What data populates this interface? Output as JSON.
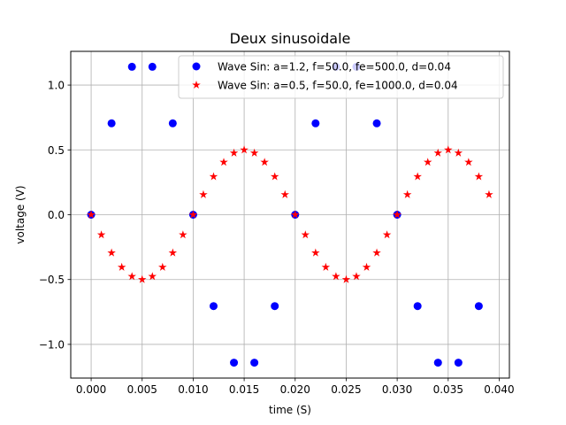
{
  "chart_data": {
    "type": "scatter",
    "title": "Deux sinusoidale",
    "xlabel": "time (S)",
    "ylabel": "voltage (V)",
    "xlim": [
      -0.002,
      0.041
    ],
    "ylim": [
      -1.26,
      1.26
    ],
    "xticks": [
      0.0,
      0.005,
      0.01,
      0.015,
      0.02,
      0.025,
      0.03,
      0.035,
      0.04
    ],
    "xtick_labels": [
      "0.000",
      "0.005",
      "0.010",
      "0.015",
      "0.020",
      "0.025",
      "0.030",
      "0.035",
      "0.040"
    ],
    "yticks": [
      -1.0,
      -0.5,
      0.0,
      0.5,
      1.0
    ],
    "ytick_labels": [
      "−1.0",
      "−0.5",
      "0.0",
      "0.5",
      "1.0"
    ],
    "grid": true,
    "legend_position": "upper-right",
    "series": [
      {
        "name": "Wave Sin: a=1.2, f=50.0, fe=500.0,  d=0.04",
        "marker": "circle",
        "color": "#0000ff",
        "x": [
          0.0,
          0.002,
          0.004,
          0.006,
          0.008,
          0.01,
          0.012,
          0.014,
          0.016,
          0.018,
          0.02,
          0.022,
          0.024,
          0.026,
          0.028,
          0.03,
          0.032,
          0.034,
          0.036,
          0.038
        ],
        "y": [
          0.0,
          0.705,
          1.141,
          1.141,
          0.705,
          0.0,
          -0.705,
          -1.141,
          -1.141,
          -0.705,
          0.0,
          0.705,
          1.141,
          1.141,
          0.705,
          0.0,
          -0.705,
          -1.141,
          -1.141,
          -0.705
        ]
      },
      {
        "name": "Wave Sin: a=0.5, f=50.0, fe=1000.0,  d=0.04",
        "marker": "star",
        "color": "#ff0000",
        "x": [
          0.0,
          0.001,
          0.002,
          0.003,
          0.004,
          0.005,
          0.006,
          0.007,
          0.008,
          0.009,
          0.01,
          0.011,
          0.012,
          0.013,
          0.014,
          0.015,
          0.016,
          0.017,
          0.018,
          0.019,
          0.02,
          0.021,
          0.022,
          0.023,
          0.024,
          0.025,
          0.026,
          0.027,
          0.028,
          0.029,
          0.03,
          0.031,
          0.032,
          0.033,
          0.034,
          0.035,
          0.036,
          0.037,
          0.038,
          0.039
        ],
        "y": [
          0.0,
          -0.155,
          -0.294,
          -0.405,
          -0.476,
          -0.5,
          -0.476,
          -0.405,
          -0.294,
          -0.155,
          0.0,
          0.155,
          0.294,
          0.405,
          0.476,
          0.5,
          0.476,
          0.405,
          0.294,
          0.155,
          0.0,
          -0.155,
          -0.294,
          -0.405,
          -0.476,
          -0.5,
          -0.476,
          -0.405,
          -0.294,
          -0.155,
          0.0,
          0.155,
          0.294,
          0.405,
          0.476,
          0.5,
          0.476,
          0.405,
          0.294,
          0.155
        ]
      }
    ]
  }
}
